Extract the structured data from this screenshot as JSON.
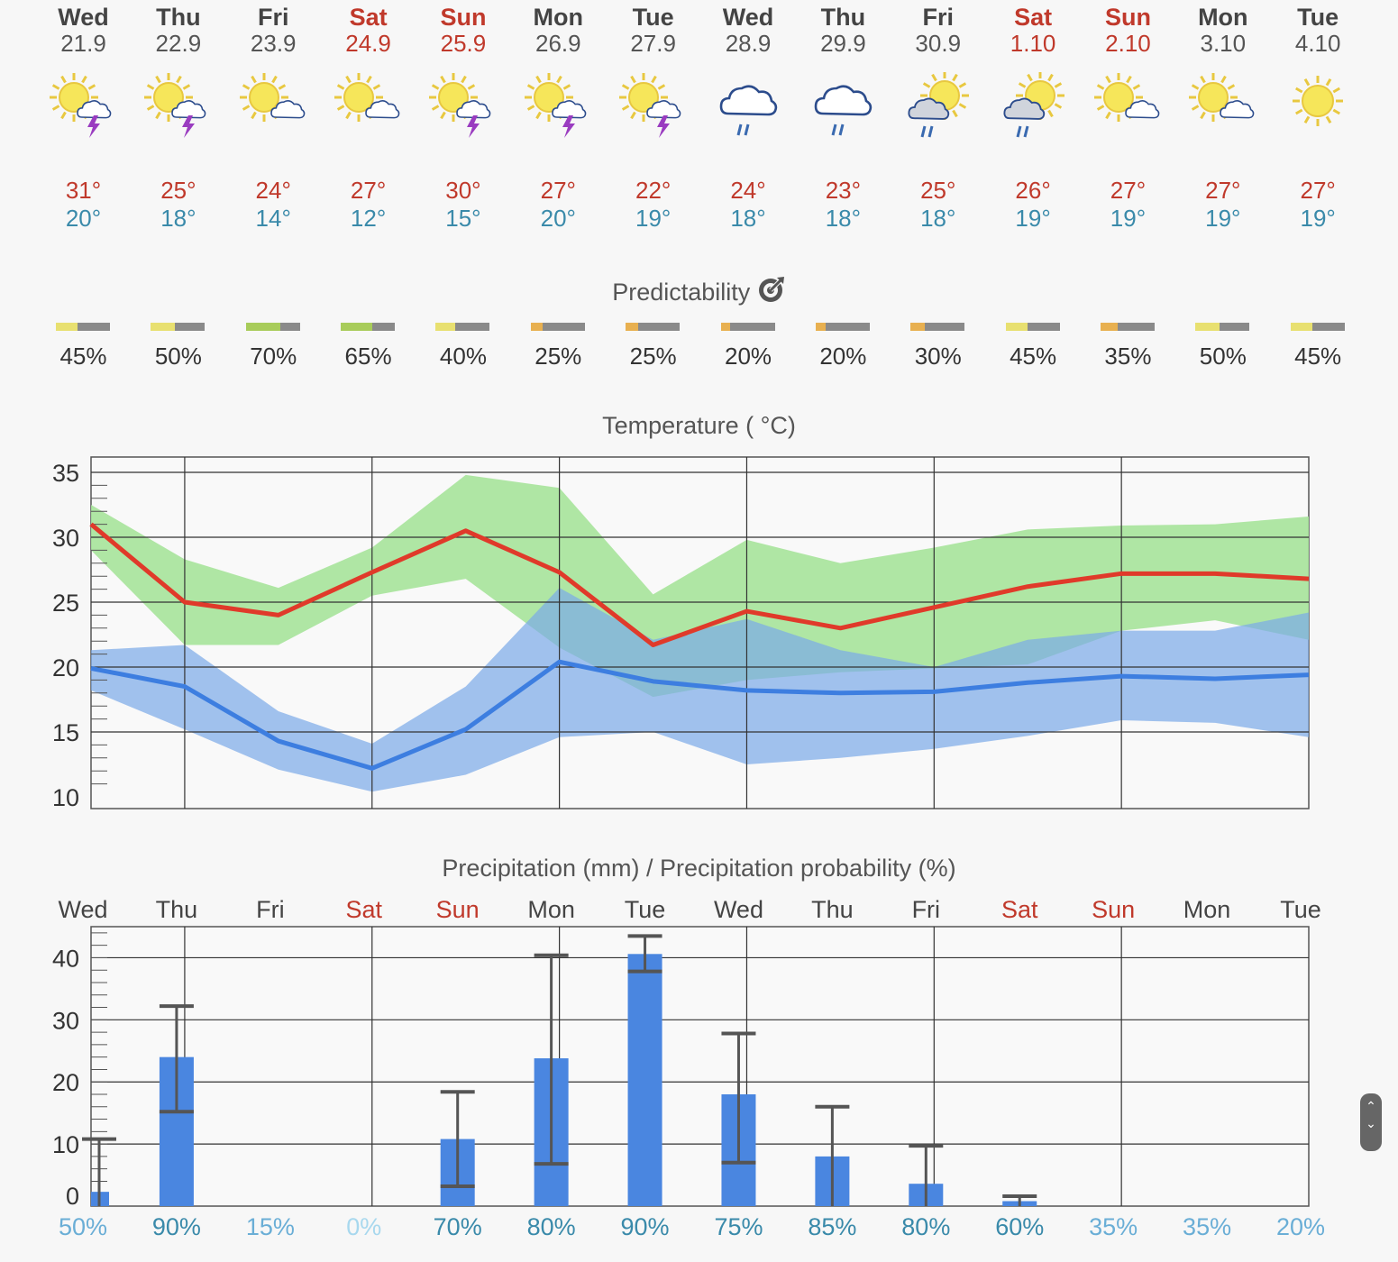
{
  "days": [
    {
      "name": "Wed",
      "date": "21.9",
      "weekend": false,
      "icon": "sun-thunder-icon",
      "max": "31°",
      "min": "20°",
      "pred": 45,
      "pred_color": "#e8e070"
    },
    {
      "name": "Thu",
      "date": "22.9",
      "weekend": false,
      "icon": "sun-thunder-icon",
      "max": "25°",
      "min": "18°",
      "pred": 50,
      "pred_color": "#e8e070"
    },
    {
      "name": "Fri",
      "date": "23.9",
      "weekend": false,
      "icon": "sun-cloud-icon",
      "max": "24°",
      "min": "14°",
      "pred": 70,
      "pred_color": "#a8cc5a"
    },
    {
      "name": "Sat",
      "date": "24.9",
      "weekend": true,
      "icon": "sun-cloud-icon",
      "max": "27°",
      "min": "12°",
      "pred": 65,
      "pred_color": "#a8cc5a"
    },
    {
      "name": "Sun",
      "date": "25.9",
      "weekend": true,
      "icon": "sun-thunder-icon",
      "max": "30°",
      "min": "15°",
      "pred": 40,
      "pred_color": "#e8e070"
    },
    {
      "name": "Mon",
      "date": "26.9",
      "weekend": false,
      "icon": "sun-thunder-icon",
      "max": "27°",
      "min": "20°",
      "pred": 25,
      "pred_color": "#e8b050"
    },
    {
      "name": "Tue",
      "date": "27.9",
      "weekend": false,
      "icon": "sun-thunder-icon",
      "max": "22°",
      "min": "19°",
      "pred": 25,
      "pred_color": "#e8b050"
    },
    {
      "name": "Wed",
      "date": "28.9",
      "weekend": false,
      "icon": "cloud-rain-icon",
      "max": "24°",
      "min": "18°",
      "pred": 20,
      "pred_color": "#e8b050"
    },
    {
      "name": "Thu",
      "date": "29.9",
      "weekend": false,
      "icon": "cloud-rain-icon",
      "max": "23°",
      "min": "18°",
      "pred": 20,
      "pred_color": "#e8b050"
    },
    {
      "name": "Fri",
      "date": "30.9",
      "weekend": false,
      "icon": "sun-cloud-rain-icon",
      "max": "25°",
      "min": "18°",
      "pred": 30,
      "pred_color": "#e8b050"
    },
    {
      "name": "Sat",
      "date": "1.10",
      "weekend": true,
      "icon": "sun-cloud-rain-icon",
      "max": "26°",
      "min": "19°",
      "pred": 45,
      "pred_color": "#e8e070"
    },
    {
      "name": "Sun",
      "date": "2.10",
      "weekend": true,
      "icon": "sun-cloud-icon",
      "max": "27°",
      "min": "19°",
      "pred": 35,
      "pred_color": "#e8b050"
    },
    {
      "name": "Mon",
      "date": "3.10",
      "weekend": false,
      "icon": "sun-cloud-icon",
      "max": "27°",
      "min": "19°",
      "pred": 50,
      "pred_color": "#e8e070"
    },
    {
      "name": "Tue",
      "date": "4.10",
      "weekend": false,
      "icon": "sun-icon",
      "max": "27°",
      "min": "19°",
      "pred": 45,
      "pred_color": "#e8e070"
    }
  ],
  "predictability": {
    "title": "Predictability",
    "pct_labels": [
      "45%",
      "50%",
      "70%",
      "65%",
      "40%",
      "25%",
      "25%",
      "20%",
      "20%",
      "30%",
      "45%",
      "35%",
      "50%",
      "45%"
    ]
  },
  "temperature_title": "Temperature ( °C)",
  "precip_title": "Precipitation (mm) / Precipitation probability (%)",
  "chart_data": [
    {
      "type": "line",
      "title": "Temperature ( °C)",
      "ylim": [
        10,
        35
      ],
      "yticks": [
        "10",
        "15",
        "20",
        "25",
        "30",
        "35"
      ],
      "grid": true,
      "series": [
        {
          "name": "",
          "color": "#e03a2a",
          "values": [
            31,
            25,
            24,
            27.3,
            30.5,
            27.3,
            21.7,
            24.3,
            23,
            24.6,
            26.2,
            27.2,
            27.2,
            26.8
          ],
          "band_low": [
            29,
            21.7,
            21.7,
            25.5,
            26.8,
            21.5,
            17.7,
            19,
            19.6,
            19.9,
            20.2,
            22.8,
            23.6,
            22.1
          ],
          "band_high": [
            32.5,
            28.3,
            26.1,
            29.2,
            34.8,
            33.8,
            25.6,
            29.8,
            28,
            29.2,
            30.6,
            30.9,
            31,
            31.6
          ],
          "band_color": "#a6e39a"
        },
        {
          "name": "",
          "color": "#3d7ee0",
          "values": [
            19.9,
            18.5,
            14.3,
            12.2,
            15.2,
            20.4,
            18.9,
            18.2,
            18,
            18.1,
            18.8,
            19.3,
            19.1,
            19.4
          ],
          "band_low": [
            18.2,
            15.2,
            12.1,
            10.4,
            11.7,
            14.6,
            15,
            12.5,
            13,
            13.7,
            14.7,
            15.9,
            15.7,
            14.6
          ],
          "band_high": [
            21.3,
            21.7,
            16.6,
            14.1,
            18.5,
            26.1,
            22.1,
            23.7,
            21.3,
            20,
            22.1,
            22.8,
            22.8,
            24.2
          ],
          "band_color": "#7aa9e8"
        }
      ]
    },
    {
      "type": "bar",
      "title": "Precipitation (mm) / Precipitation probability (%)",
      "ylim": [
        0,
        45
      ],
      "yticks": [
        "0",
        "10",
        "20",
        "30",
        "40"
      ],
      "categories": [
        "Wed",
        "Thu",
        "Fri",
        "Sat",
        "Sun",
        "Mon",
        "Tue",
        "Wed",
        "Thu",
        "Fri",
        "Sat",
        "Sun",
        "Mon",
        "Tue"
      ],
      "weekend": [
        false,
        false,
        false,
        true,
        true,
        false,
        false,
        false,
        false,
        false,
        true,
        true,
        false,
        false
      ],
      "values": [
        2.3,
        24,
        0,
        0,
        10.8,
        23.8,
        40.6,
        18,
        8,
        3.6,
        0.8,
        0,
        0,
        0
      ],
      "err_low": [
        0,
        15.2,
        0,
        0,
        3.2,
        6.8,
        37.8,
        7,
        0,
        0,
        0,
        0,
        0,
        0
      ],
      "err_high": [
        10.8,
        32.2,
        0,
        0,
        18.4,
        40.4,
        43.5,
        27.8,
        16,
        9.7,
        1.6,
        0,
        0,
        0
      ],
      "probabilities": [
        "50%",
        "90%",
        "15%",
        "0%",
        "70%",
        "80%",
        "90%",
        "75%",
        "85%",
        "80%",
        "60%",
        "35%",
        "35%",
        "20%"
      ],
      "prob_colors": [
        "#6aaed6",
        "#3a8aaa",
        "#6aaed6",
        "#a8d8ee",
        "#3a8aaa",
        "#3a8aaa",
        "#3a8aaa",
        "#3a8aaa",
        "#3a8aaa",
        "#3a8aaa",
        "#3a8aaa",
        "#6aaed6",
        "#6aaed6",
        "#6aaed6"
      ],
      "bar_color": "#4a86e0"
    }
  ]
}
